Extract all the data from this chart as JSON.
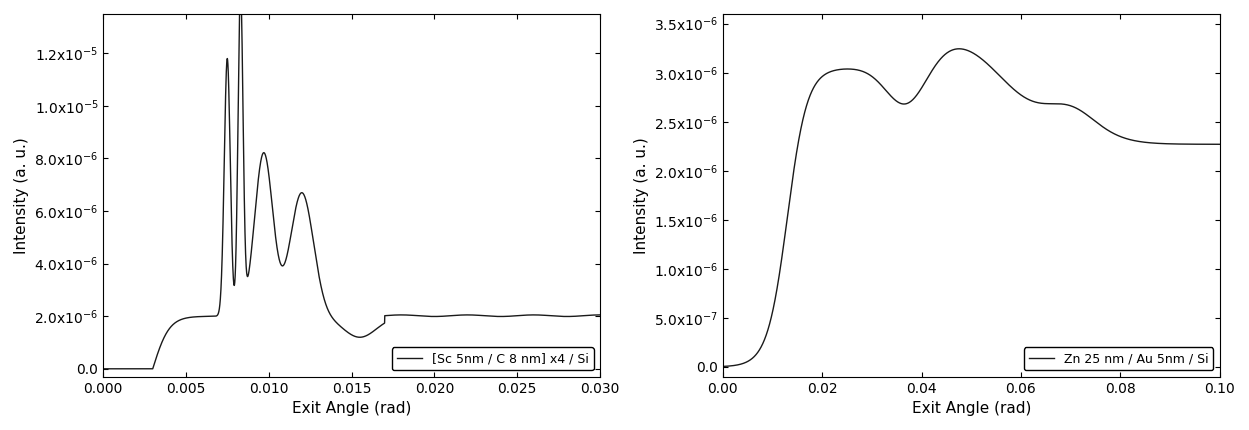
{
  "plot1": {
    "xlabel": "Exit Angle (rad)",
    "ylabel": "Intensity (a. u.)",
    "xlim": [
      0.0,
      0.03
    ],
    "ylim": [
      -3e-07,
      1.35e-05
    ],
    "yticks": [
      0.0,
      2e-06,
      4e-06,
      6e-06,
      8e-06,
      1e-05,
      1.2e-05
    ],
    "xticks": [
      0.0,
      0.005,
      0.01,
      0.015,
      0.02,
      0.025,
      0.03
    ],
    "legend": "[Sc 5nm / C 8 nm] x4 / Si",
    "line_color": "#1a1a1a"
  },
  "plot2": {
    "xlabel": "Exit Angle (rad)",
    "ylabel": "Intensity (a. u.)",
    "xlim": [
      0.0,
      0.1
    ],
    "ylim": [
      -1e-07,
      3.6e-06
    ],
    "yticks": [
      0.0,
      5e-07,
      1e-06,
      1.5e-06,
      2e-06,
      2.5e-06,
      3e-06,
      3.5e-06
    ],
    "xticks": [
      0.0,
      0.02,
      0.04,
      0.06,
      0.08,
      0.1
    ],
    "legend": "Zn 25 nm / Au 5nm / Si",
    "line_color": "#1a1a1a"
  },
  "figure_width": 12.49,
  "figure_height": 4.3,
  "dpi": 100
}
